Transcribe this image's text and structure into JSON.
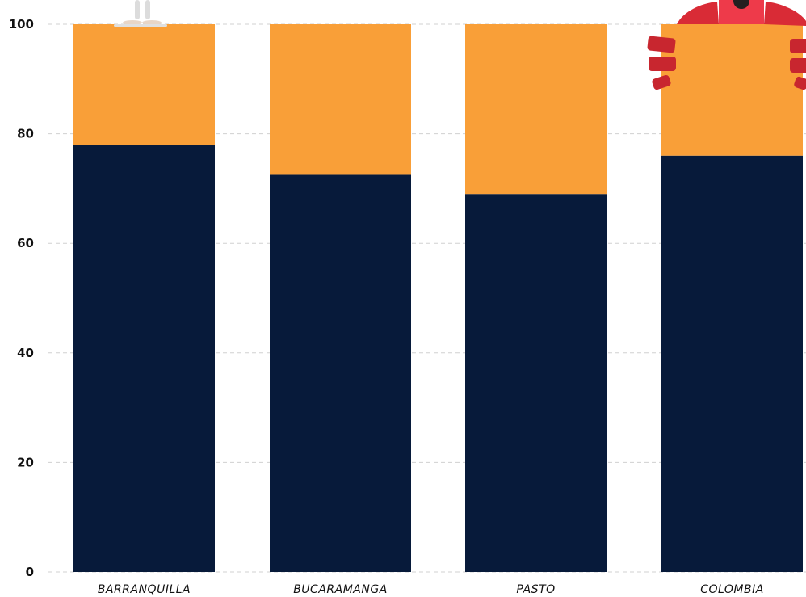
{
  "chart_data": {
    "type": "bar",
    "stacked": true,
    "categories": [
      "BARRANQUILLA",
      "BUCARAMANGA",
      "PASTO",
      "COLOMBIA"
    ],
    "series": [
      {
        "values": [
          78,
          72.5,
          69,
          76
        ],
        "color": "#071a3a"
      },
      {
        "values": [
          22,
          27.5,
          31,
          24
        ],
        "color": "#f99f38"
      }
    ],
    "ylim": [
      0,
      100
    ],
    "yticks": [
      0,
      20,
      40,
      60,
      80,
      100
    ],
    "grid": true,
    "title": "",
    "xlabel": "",
    "ylabel": ""
  },
  "decorations": {
    "left_figure": {
      "icon": "legs-figure-icon",
      "color": "#dcdcdc"
    },
    "right_figure": {
      "icon": "red-monster-icon",
      "color": "#e63946"
    }
  }
}
